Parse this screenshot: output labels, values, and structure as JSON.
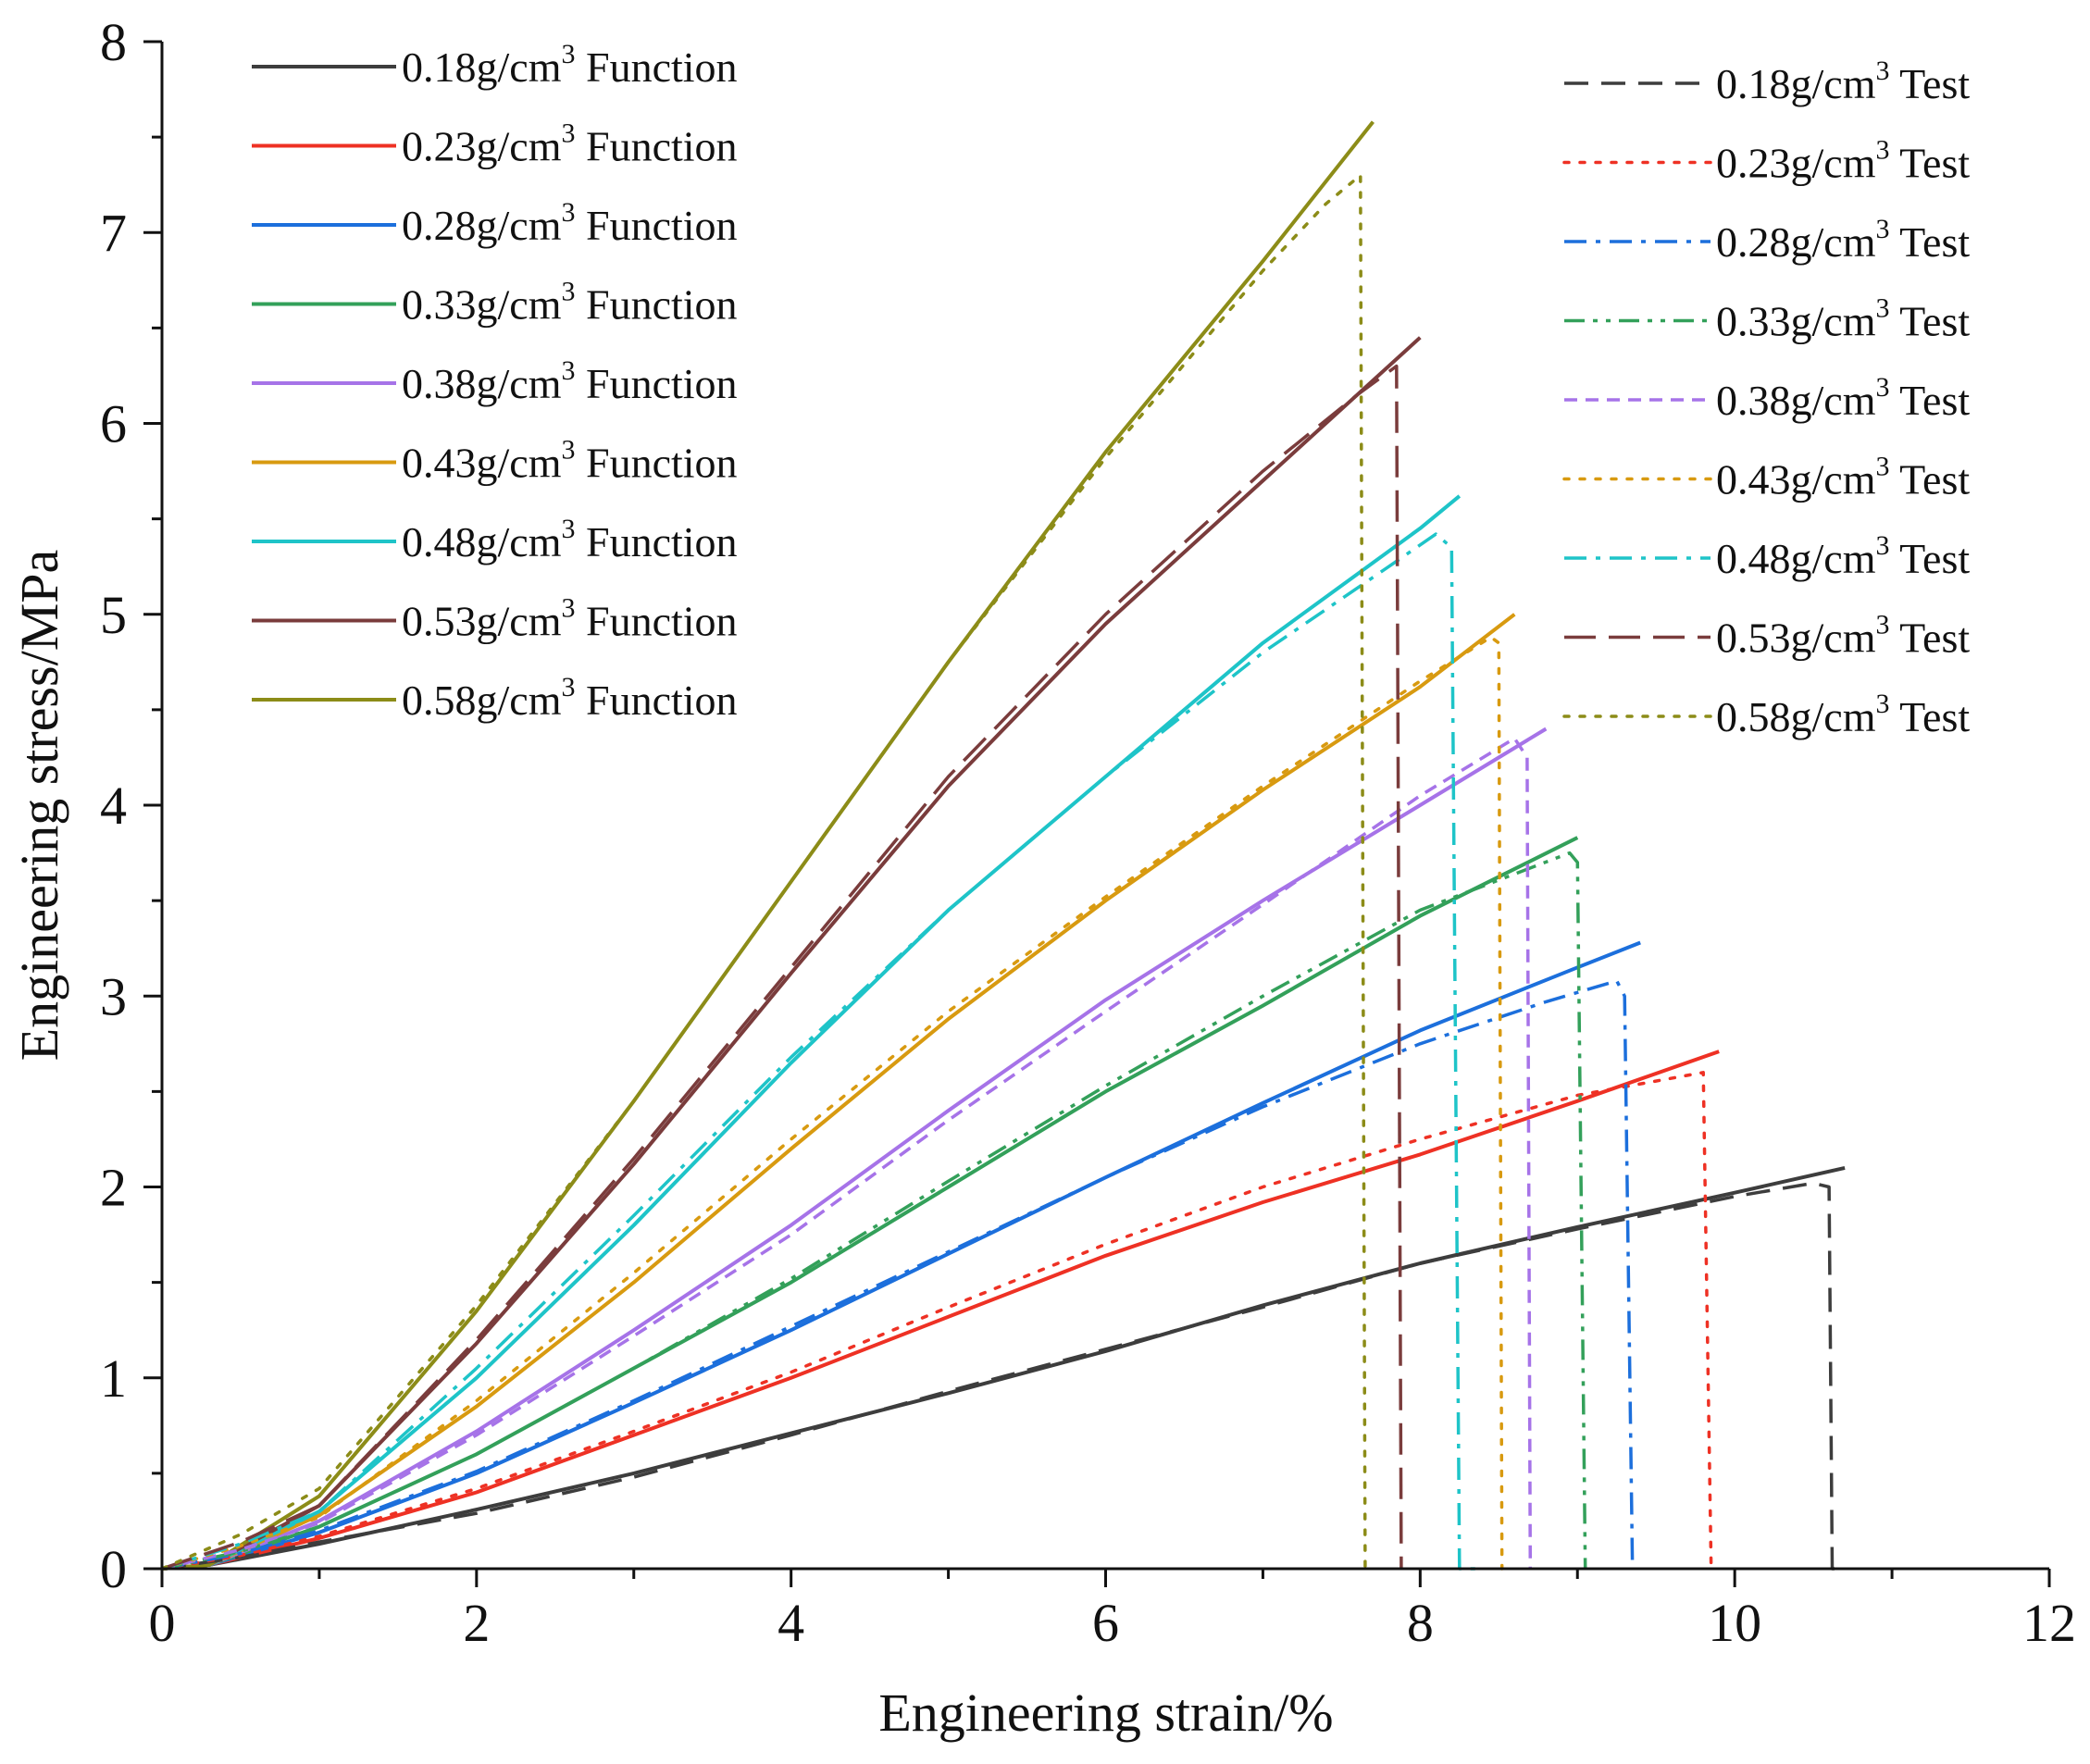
{
  "chart_data": {
    "type": "line",
    "title": "",
    "xlabel": "Engineering strain/%",
    "ylabel": "Engineering stress/MPa",
    "xlim": [
      0,
      12
    ],
    "ylim": [
      0,
      8
    ],
    "xticks": [
      "0",
      "2",
      "4",
      "6",
      "8",
      "10",
      "12"
    ],
    "yticks": [
      "0",
      "1",
      "2",
      "3",
      "4",
      "5",
      "6",
      "7",
      "8"
    ],
    "grid": false,
    "legend": {
      "function_position": "top-left",
      "test_position": "top-right"
    },
    "series": [
      {
        "name": "0.18g/cm3 Function",
        "label_base": "0.18g/cm",
        "label_sup": "3",
        "label_suffix": " Function",
        "color": "#3d3d3d",
        "dash": "solid",
        "x": [
          0,
          0.3,
          1,
          2,
          3,
          4,
          5,
          6,
          7,
          8,
          9,
          10,
          10.7
        ],
        "y": [
          0,
          0.02,
          0.13,
          0.31,
          0.5,
          0.71,
          0.92,
          1.14,
          1.38,
          1.6,
          1.79,
          1.97,
          2.1
        ]
      },
      {
        "name": "0.23g/cm3 Function",
        "label_base": "0.23g/cm",
        "label_sup": "3",
        "label_suffix": " Function",
        "color": "#ee3124",
        "dash": "solid",
        "x": [
          0,
          0.3,
          1,
          2,
          3,
          4,
          5,
          6,
          7,
          8,
          9,
          9.9
        ],
        "y": [
          0,
          0.02,
          0.16,
          0.4,
          0.7,
          1.0,
          1.32,
          1.64,
          1.92,
          2.17,
          2.45,
          2.71
        ]
      },
      {
        "name": "0.28g/cm3 Function",
        "label_base": "0.28g/cm",
        "label_sup": "3",
        "label_suffix": " Function",
        "color": "#1c6fdc",
        "dash": "solid",
        "x": [
          0,
          0.3,
          1,
          2,
          3,
          4,
          5,
          6,
          7,
          8,
          9,
          9.4
        ],
        "y": [
          0,
          0.02,
          0.19,
          0.5,
          0.87,
          1.25,
          1.65,
          2.05,
          2.44,
          2.82,
          3.15,
          3.28
        ]
      },
      {
        "name": "0.33g/cm3 Function",
        "label_base": "0.33g/cm",
        "label_sup": "3",
        "label_suffix": " Function",
        "color": "#33a05a",
        "dash": "solid",
        "x": [
          0,
          0.3,
          1,
          2,
          3,
          4,
          5,
          6,
          7,
          8,
          9
        ],
        "y": [
          0,
          0.02,
          0.22,
          0.6,
          1.05,
          1.5,
          2.0,
          2.5,
          2.95,
          3.42,
          3.83
        ]
      },
      {
        "name": "0.38g/cm3 Function",
        "label_base": "0.38g/cm",
        "label_sup": "3",
        "label_suffix": " Function",
        "color": "#a673e8",
        "dash": "solid",
        "x": [
          0,
          0.3,
          1,
          2,
          3,
          4,
          5,
          6,
          7,
          8,
          8.8
        ],
        "y": [
          0,
          0.02,
          0.25,
          0.72,
          1.25,
          1.8,
          2.4,
          2.98,
          3.5,
          4.0,
          4.4
        ]
      },
      {
        "name": "0.43g/cm3 Function",
        "label_base": "0.43g/cm",
        "label_sup": "3",
        "label_suffix": " Function",
        "color": "#d89a10",
        "dash": "solid",
        "x": [
          0,
          0.3,
          1,
          2,
          3,
          4,
          5,
          6,
          7,
          8,
          8.6
        ],
        "y": [
          0,
          0.02,
          0.28,
          0.85,
          1.5,
          2.2,
          2.88,
          3.5,
          4.08,
          4.62,
          5.0
        ]
      },
      {
        "name": "0.48g/cm3 Function",
        "label_base": "0.48g/cm",
        "label_sup": "3",
        "label_suffix": " Function",
        "color": "#1ec4c8",
        "dash": "solid",
        "x": [
          0,
          0.3,
          1,
          2,
          3,
          4,
          5,
          6,
          7,
          8,
          8.25
        ],
        "y": [
          0,
          0.02,
          0.3,
          1.0,
          1.8,
          2.65,
          3.45,
          4.15,
          4.85,
          5.45,
          5.62
        ]
      },
      {
        "name": "0.53g/cm3 Function",
        "label_base": "0.53g/cm",
        "label_sup": "3",
        "label_suffix": " Function",
        "color": "#7a3c3c",
        "dash": "solid",
        "x": [
          0,
          0.3,
          1,
          2,
          3,
          4,
          5,
          6,
          7,
          8
        ],
        "y": [
          0,
          0.02,
          0.33,
          1.18,
          2.12,
          3.12,
          4.1,
          4.95,
          5.7,
          6.45
        ]
      },
      {
        "name": "0.58g/cm3 Function",
        "label_base": "0.58g/cm",
        "label_sup": "3",
        "label_suffix": " Function",
        "color": "#8c8c18",
        "dash": "solid",
        "x": [
          0,
          0.3,
          1,
          2,
          3,
          4,
          5,
          6,
          7,
          7.7
        ],
        "y": [
          0,
          0.02,
          0.38,
          1.35,
          2.45,
          3.6,
          4.75,
          5.85,
          6.85,
          7.58
        ]
      },
      {
        "name": "0.18g/cm3 Test",
        "label_base": "0.18g/cm",
        "label_sup": "3",
        "label_suffix": " Test",
        "color": "#3d3d3d",
        "dash": "dash",
        "x": [
          0,
          0.5,
          1,
          2,
          3,
          4,
          5,
          6,
          7,
          8,
          9,
          10,
          10.5,
          10.6,
          10.62,
          10.7
        ],
        "y": [
          0,
          0.06,
          0.14,
          0.29,
          0.48,
          0.7,
          0.93,
          1.15,
          1.37,
          1.6,
          1.78,
          1.95,
          2.02,
          2.0,
          0,
          0
        ]
      },
      {
        "name": "0.23g/cm3 Test",
        "label_base": "0.23g/cm",
        "label_sup": "3",
        "label_suffix": " Test",
        "color": "#ee3124",
        "dash": "dot",
        "x": [
          0,
          0.5,
          1,
          2,
          3,
          4,
          5,
          6,
          7,
          8,
          9,
          9.8,
          9.85
        ],
        "y": [
          0,
          0.07,
          0.17,
          0.42,
          0.72,
          1.03,
          1.37,
          1.7,
          2.0,
          2.25,
          2.48,
          2.6,
          0
        ]
      },
      {
        "name": "0.28g/cm3 Test",
        "label_base": "0.28g/cm",
        "label_sup": "3",
        "label_suffix": " Test",
        "color": "#1c6fdc",
        "dash": "dashdot",
        "x": [
          0,
          0.5,
          1,
          2,
          3,
          4,
          5,
          6,
          7,
          8,
          8.8,
          9.25,
          9.3,
          9.35
        ],
        "y": [
          0,
          0.08,
          0.2,
          0.51,
          0.88,
          1.27,
          1.66,
          2.05,
          2.42,
          2.75,
          2.97,
          3.08,
          3.0,
          0
        ]
      },
      {
        "name": "0.33g/cm3 Test",
        "label_base": "0.33g/cm",
        "label_sup": "3",
        "label_suffix": " Test",
        "color": "#33a05a",
        "dash": "dashdotdot",
        "x": [
          0,
          0.5,
          1,
          2,
          3,
          4,
          5,
          6,
          7,
          8,
          8.95,
          9.0,
          9.05
        ],
        "y": [
          0,
          0.09,
          0.22,
          0.6,
          1.05,
          1.52,
          2.03,
          2.53,
          3.0,
          3.45,
          3.75,
          3.7,
          0
        ]
      },
      {
        "name": "0.38g/cm3 Test",
        "label_base": "0.38g/cm",
        "label_sup": "3",
        "label_suffix": " Test",
        "color": "#a673e8",
        "dash": "shortdash",
        "x": [
          0,
          0.5,
          1,
          2,
          3,
          4,
          5,
          6,
          7,
          8,
          8.6,
          8.68,
          8.7
        ],
        "y": [
          0,
          0.1,
          0.24,
          0.7,
          1.22,
          1.75,
          2.35,
          2.92,
          3.48,
          4.05,
          4.35,
          4.25,
          0
        ]
      },
      {
        "name": "0.43g/cm3 Test",
        "label_base": "0.43g/cm",
        "label_sup": "3",
        "label_suffix": " Test",
        "color": "#d89a10",
        "dash": "dot",
        "x": [
          0,
          0.5,
          1,
          2,
          3,
          4,
          5,
          6,
          7,
          8,
          8.45,
          8.5,
          8.52
        ],
        "y": [
          0,
          0.12,
          0.27,
          0.88,
          1.55,
          2.25,
          2.92,
          3.52,
          4.1,
          4.65,
          4.88,
          4.85,
          0
        ]
      },
      {
        "name": "0.48g/cm3 Test",
        "label_base": "0.48g/cm",
        "label_sup": "3",
        "label_suffix": " Test",
        "color": "#1ec4c8",
        "dash": "dashdot",
        "x": [
          0,
          0.5,
          1,
          2,
          3,
          4,
          5,
          6,
          7,
          7.8,
          8.1,
          8.2,
          8.25,
          8.35
        ],
        "y": [
          0,
          0.13,
          0.3,
          1.05,
          1.85,
          2.68,
          3.45,
          4.15,
          4.8,
          5.25,
          5.42,
          5.35,
          0,
          0
        ]
      },
      {
        "name": "0.53g/cm3 Test",
        "label_base": "0.53g/cm",
        "label_sup": "3",
        "label_suffix": " Test",
        "color": "#7a3c3c",
        "dash": "longdash",
        "x": [
          0,
          0.5,
          1,
          2,
          3,
          4,
          5,
          6,
          7,
          7.6,
          7.85,
          7.88
        ],
        "y": [
          0,
          0.14,
          0.33,
          1.2,
          2.15,
          3.15,
          4.15,
          5.0,
          5.75,
          6.15,
          6.3,
          0
        ]
      },
      {
        "name": "0.58g/cm3 Test",
        "label_base": "0.58g/cm",
        "label_sup": "3",
        "label_suffix": " Test",
        "color": "#8c8c18",
        "dash": "dot",
        "x": [
          0,
          0.5,
          1,
          2,
          3,
          4,
          5,
          6,
          7,
          7.4,
          7.62,
          7.65
        ],
        "y": [
          0,
          0.18,
          0.42,
          1.38,
          2.45,
          3.6,
          4.75,
          5.82,
          6.8,
          7.15,
          7.3,
          0
        ]
      }
    ]
  }
}
